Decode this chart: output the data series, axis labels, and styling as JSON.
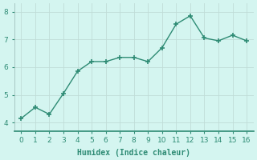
{
  "x": [
    0,
    1,
    2,
    3,
    4,
    5,
    6,
    7,
    8,
    9,
    10,
    11,
    12,
    13,
    14,
    15,
    16
  ],
  "y": [
    4.15,
    4.55,
    4.3,
    5.05,
    5.85,
    6.2,
    6.2,
    6.35,
    6.35,
    6.2,
    6.7,
    7.55,
    7.85,
    7.05,
    6.95,
    7.15,
    6.95
  ],
  "line_color": "#2e8b74",
  "marker": "+",
  "marker_size": 4,
  "marker_lw": 1.2,
  "bg_color": "#d4f5f0",
  "grid_color": "#c0ddd8",
  "xlabel": "Humidex (Indice chaleur)",
  "xlim": [
    -0.5,
    16.5
  ],
  "ylim": [
    3.7,
    8.3
  ],
  "yticks": [
    4,
    5,
    6,
    7,
    8
  ],
  "xticks": [
    0,
    1,
    2,
    3,
    4,
    5,
    6,
    7,
    8,
    9,
    10,
    11,
    12,
    13,
    14,
    15,
    16
  ],
  "xlabel_fontsize": 7,
  "tick_fontsize": 6.5,
  "line_width": 1.0,
  "axis_color": "#2e8b74",
  "tick_color": "#2e8b74",
  "spine_bottom_color": "#2e8b74",
  "spine_left_color": "#a0c0bc"
}
